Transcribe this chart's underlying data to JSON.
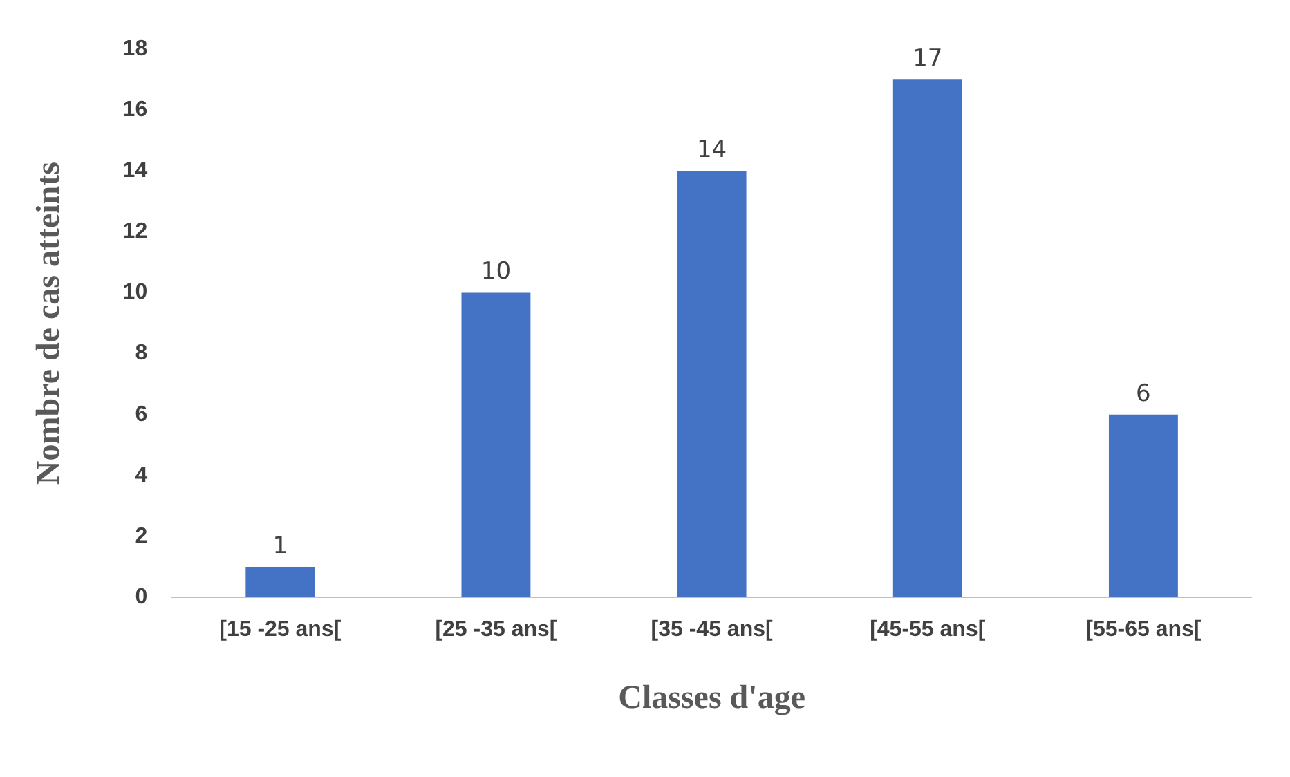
{
  "chart_data": {
    "type": "bar",
    "xlabel": "Classes d'age",
    "ylabel": "Nombre de cas atteints",
    "categories": [
      "[15 -25 ans[",
      "[25 -35 ans[",
      "[35 -45 ans[",
      "[45-55 ans[",
      "[55-65 ans["
    ],
    "values": [
      1,
      10,
      14,
      17,
      6
    ],
    "color": "#4472c4",
    "ylim": [
      0,
      18
    ],
    "yticks": [
      0,
      2,
      4,
      6,
      8,
      10,
      12,
      14,
      16,
      18
    ],
    "grid": false,
    "data_labels": true,
    "legend": false
  }
}
